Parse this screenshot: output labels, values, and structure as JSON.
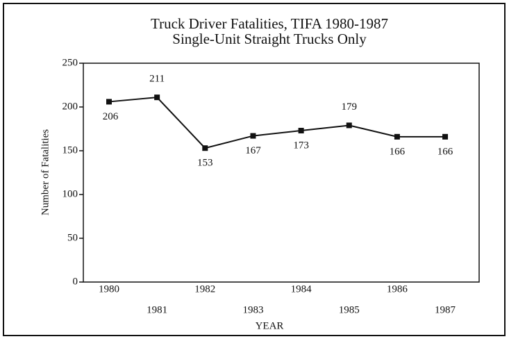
{
  "chart_data": {
    "type": "line",
    "title": "Truck Driver Fatalities, TIFA 1980-1987",
    "subtitle": "Single-Unit Straight Trucks Only",
    "x_label": "YEAR",
    "y_label": "Number of Fatalities",
    "categories": [
      "1980",
      "1981",
      "1982",
      "1983",
      "1984",
      "1985",
      "1986",
      "1987"
    ],
    "values": [
      206,
      211,
      153,
      167,
      173,
      179,
      166,
      166
    ],
    "color": "#111111",
    "ylim": [
      0,
      250
    ],
    "yticks": [
      0,
      50,
      100,
      150,
      200,
      250
    ],
    "grid": false
  }
}
